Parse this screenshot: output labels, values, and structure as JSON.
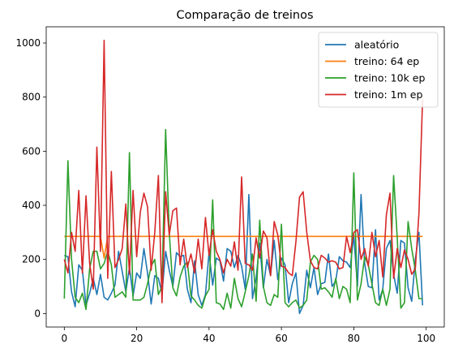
{
  "chart_data": {
    "type": "line",
    "title": "Comparação de treinos",
    "xlabel": "",
    "ylabel": "",
    "xlim": [
      -5,
      105
    ],
    "ylim": [
      -50,
      1060
    ],
    "x_ticks": [
      0,
      20,
      40,
      60,
      80,
      100
    ],
    "y_ticks": [
      0,
      200,
      400,
      600,
      800,
      1000
    ],
    "grid": false,
    "legend_position": "top-right",
    "series": [
      {
        "name": "aleatório",
        "color": "#1f77b4",
        "values": [
          215,
          210,
          80,
          25,
          180,
          160,
          30,
          75,
          130,
          70,
          145,
          60,
          50,
          75,
          105,
          230,
          155,
          80,
          170,
          65,
          150,
          130,
          240,
          150,
          35,
          140,
          130,
          75,
          230,
          160,
          100,
          225,
          210,
          215,
          90,
          40,
          195,
          70,
          30,
          70,
          225,
          105,
          205,
          195,
          120,
          240,
          230,
          170,
          215,
          175,
          90,
          440,
          55,
          130,
          260,
          95,
          200,
          140,
          270,
          125,
          205,
          180,
          40,
          110,
          150,
          0,
          30,
          160,
          95,
          170,
          70,
          110,
          115,
          220,
          100,
          120,
          210,
          195,
          190,
          170,
          290,
          100,
          440,
          185,
          100,
          95,
          310,
          50,
          90,
          240,
          270,
          145,
          75,
          270,
          260,
          95,
          45,
          200,
          300,
          30
        ]
      },
      {
        "name": "treino: 64 ep",
        "color": "#ff7f0e",
        "values": [
          285,
          285,
          285,
          285,
          285,
          285,
          285,
          285,
          285,
          285,
          285,
          205,
          285,
          285,
          285,
          285,
          285,
          285,
          285,
          285,
          285,
          285,
          285,
          285,
          285,
          285,
          285,
          285,
          285,
          285,
          285,
          285,
          285,
          285,
          285,
          285,
          285,
          285,
          285,
          285,
          285,
          285,
          285,
          285,
          285,
          285,
          285,
          285,
          285,
          285,
          285,
          285,
          285,
          285,
          285,
          285,
          285,
          285,
          285,
          285,
          285,
          285,
          285,
          285,
          285,
          285,
          285,
          285,
          285,
          285,
          285,
          285,
          285,
          285,
          285,
          285,
          285,
          285,
          285,
          285,
          285,
          285,
          285,
          285,
          285,
          285,
          285,
          285,
          285,
          285,
          285,
          285,
          285,
          285,
          285,
          285,
          285,
          285,
          285,
          285
        ]
      },
      {
        "name": "treino: 10k ep",
        "color": "#2ca02c",
        "values": [
          55,
          565,
          200,
          60,
          40,
          75,
          15,
          165,
          230,
          230,
          165,
          185,
          230,
          180,
          60,
          70,
          80,
          60,
          595,
          50,
          50,
          50,
          60,
          110,
          175,
          200,
          70,
          100,
          680,
          300,
          95,
          65,
          135,
          175,
          190,
          65,
          50,
          30,
          20,
          65,
          90,
          420,
          40,
          35,
          15,
          75,
          20,
          130,
          55,
          25,
          80,
          140,
          220,
          45,
          345,
          100,
          40,
          30,
          70,
          60,
          330,
          40,
          25,
          40,
          50,
          20,
          30,
          50,
          190,
          215,
          200,
          90,
          95,
          80,
          60,
          130,
          55,
          100,
          90,
          40,
          520,
          50,
          110,
          210,
          180,
          110,
          40,
          30,
          90,
          30,
          90,
          510,
          280,
          20,
          40,
          340,
          240,
          160,
          55,
          55
        ]
      },
      {
        "name": "treino: 1m ep",
        "color": "#d62728",
        "values": [
          200,
          150,
          300,
          230,
          455,
          150,
          435,
          185,
          90,
          615,
          230,
          1010,
          130,
          525,
          170,
          200,
          240,
          405,
          145,
          455,
          210,
          375,
          445,
          395,
          160,
          300,
          510,
          40,
          450,
          290,
          380,
          390,
          180,
          275,
          170,
          220,
          150,
          275,
          165,
          355,
          215,
          310,
          230,
          200,
          150,
          200,
          175,
          265,
          160,
          505,
          185,
          180,
          160,
          280,
          205,
          305,
          280,
          140,
          340,
          290,
          175,
          170,
          150,
          140,
          265,
          430,
          450,
          300,
          195,
          170,
          165,
          215,
          205,
          190,
          195,
          190,
          165,
          170,
          285,
          225,
          300,
          310,
          200,
          240,
          175,
          300,
          210,
          270,
          135,
          365,
          445,
          130,
          240,
          170,
          235,
          200,
          145,
          165,
          370,
          790
        ]
      }
    ]
  }
}
